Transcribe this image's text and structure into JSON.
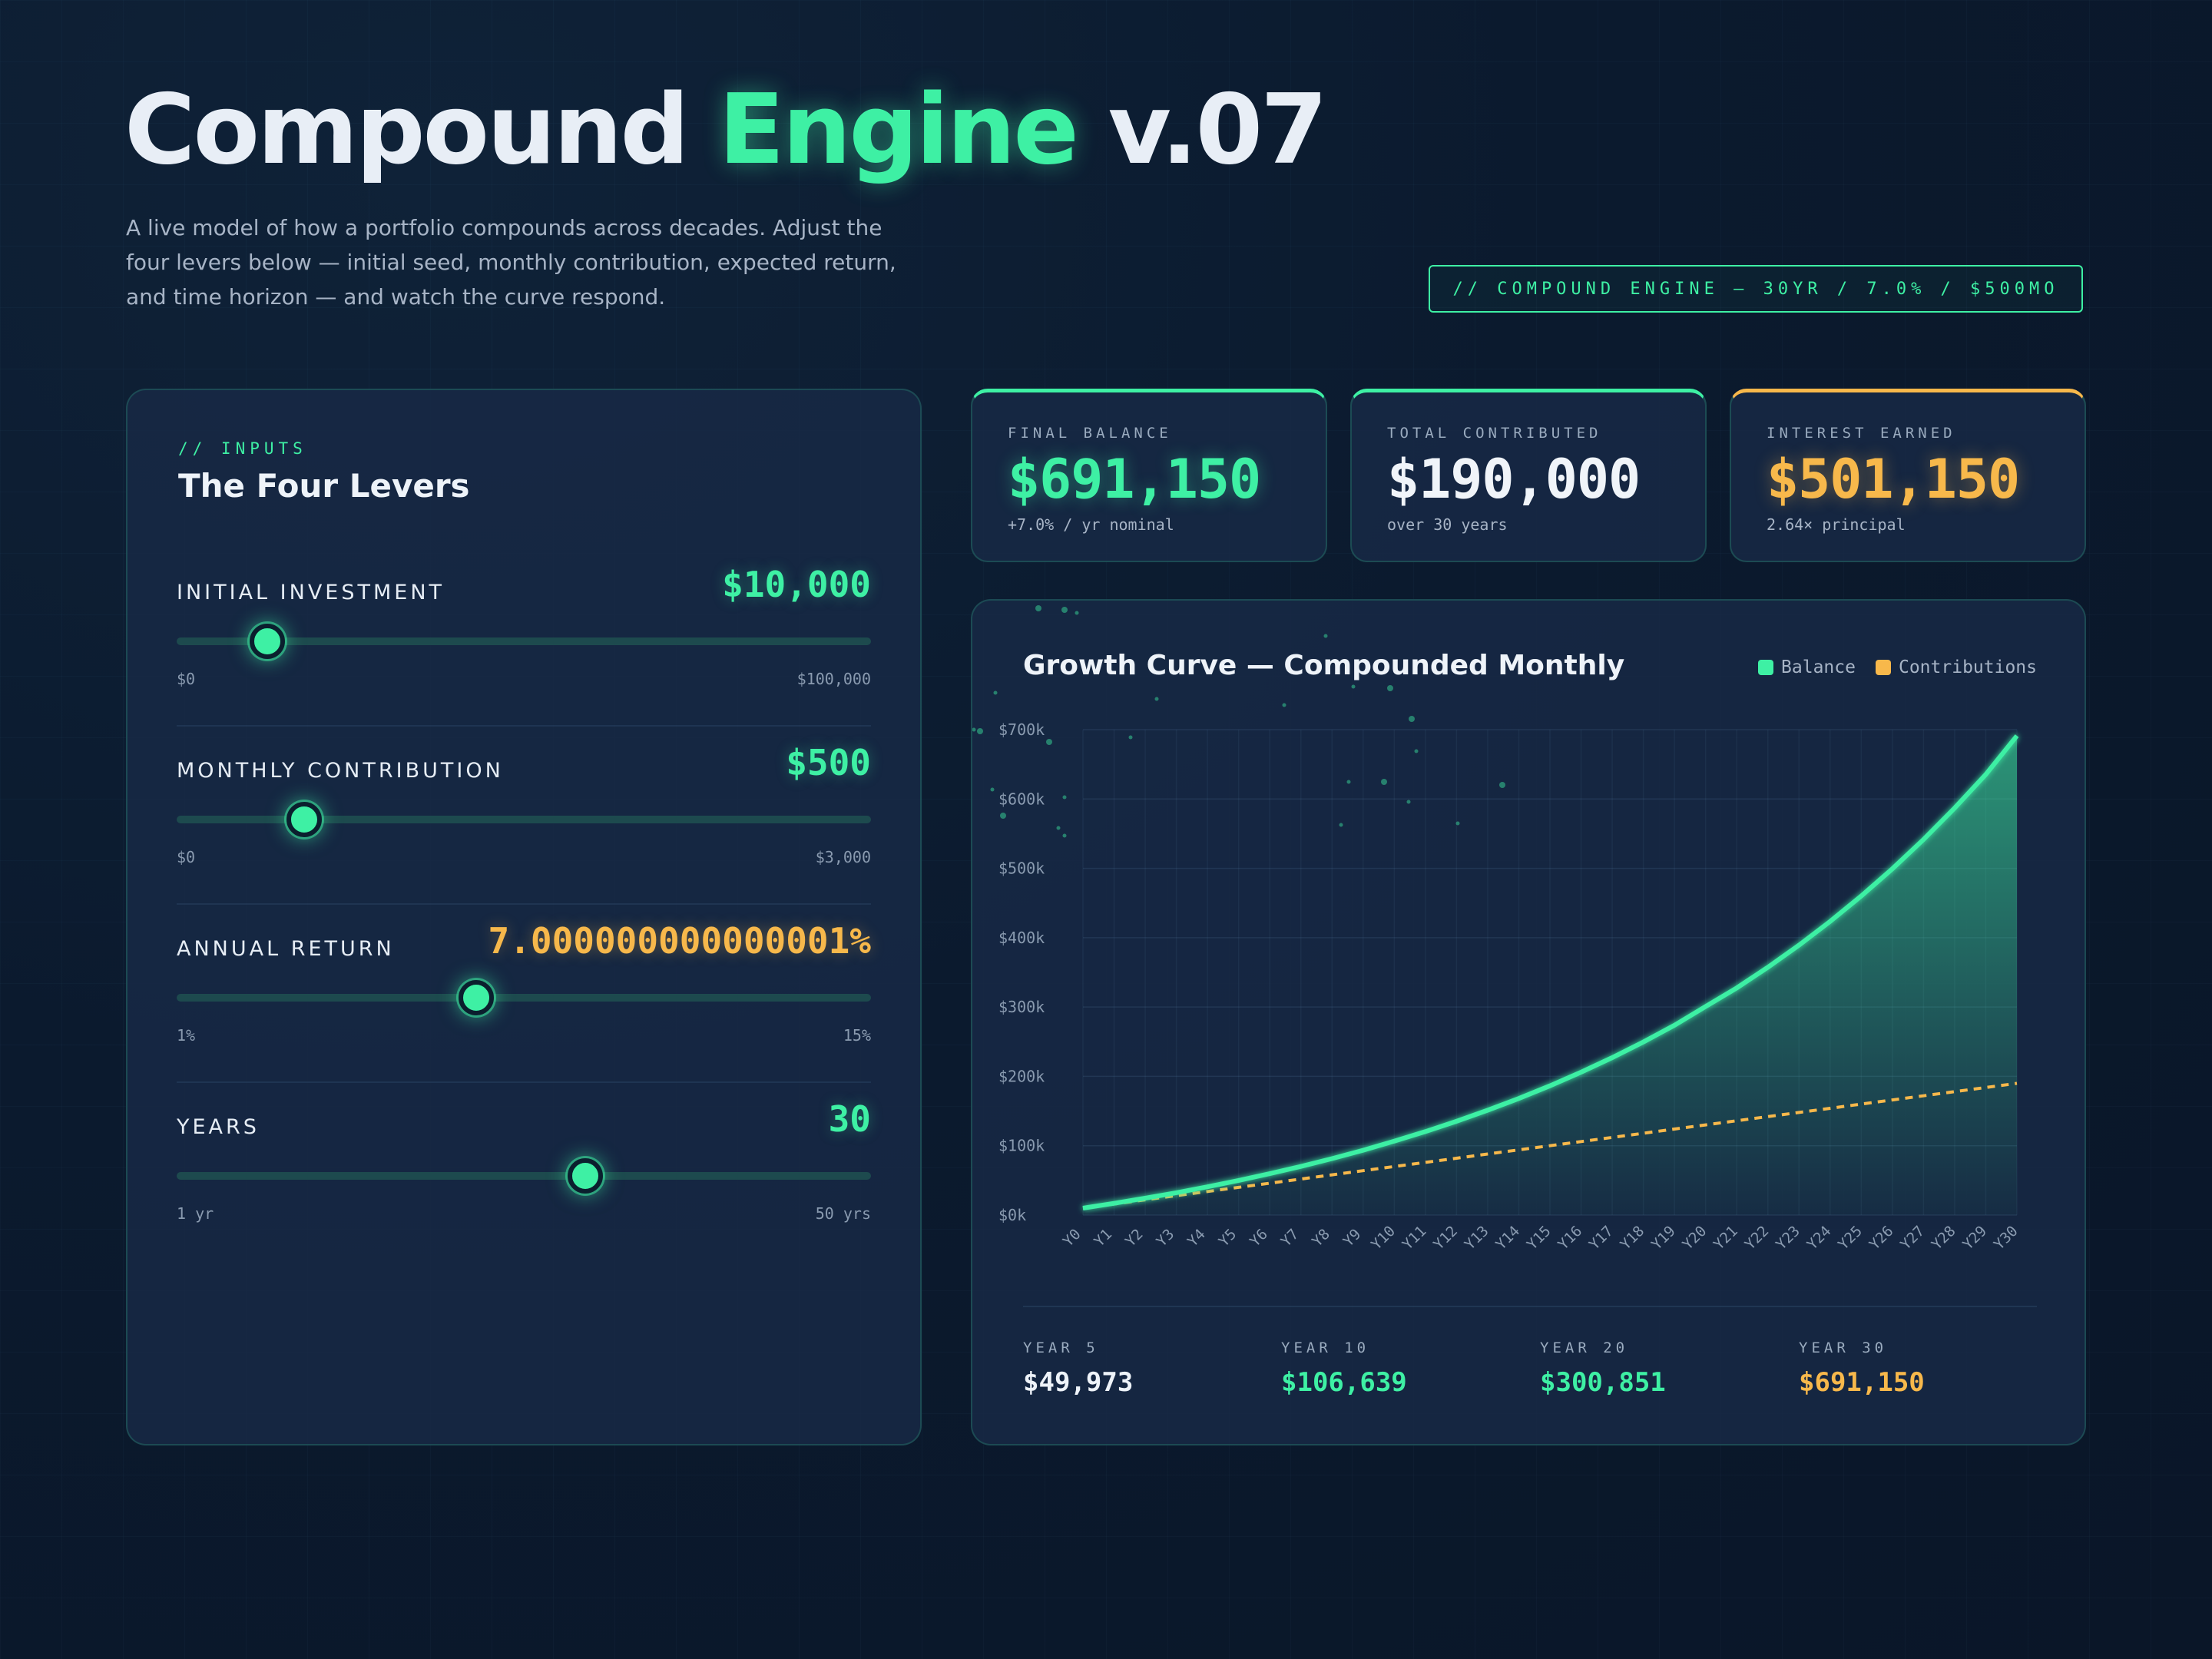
{
  "header": {
    "title_part1": "Compound ",
    "title_accent": "Engine",
    "title_part2": " v.07",
    "subtitle": "A live model of how a portfolio compounds across decades. Adjust the four levers below — initial seed, monthly contribution, expected return, and time horizon — and watch the curve respond.",
    "tagline": "// COMPOUND ENGINE — 30YR / 7.0% / $500MO"
  },
  "inputs": {
    "eyebrow": "// INPUTS",
    "title": "The Four Levers",
    "levers": [
      {
        "label": "INITIAL INVESTMENT",
        "value": "$10,000",
        "min": "$0",
        "max": "$100,000",
        "position": 0.1,
        "color": "#3ef0a4"
      },
      {
        "label": "MONTHLY CONTRIBUTION",
        "value": "$500",
        "min": "$0",
        "max": "$3,000",
        "position": 0.1667,
        "color": "#3ef0a4"
      },
      {
        "label": "ANNUAL RETURN",
        "value": "7.000000000000001%",
        "min": "1%",
        "max": "15%",
        "position": 0.4286,
        "color": "#f7b84b"
      },
      {
        "label": "YEARS",
        "value": "30",
        "min": "1 yr",
        "max": "50 yrs",
        "position": 0.5918,
        "color": "#3ef0a4"
      }
    ]
  },
  "stats": [
    {
      "label": "FINAL BALANCE",
      "value": "$691,150",
      "sub": "+7.0% / yr nominal",
      "accent": "#3ef0a4"
    },
    {
      "label": "TOTAL CONTRIBUTED",
      "value": "$190,000",
      "sub": "over 30 years",
      "accent": "#3ef0a4"
    },
    {
      "label": "INTEREST EARNED",
      "value": "$501,150",
      "sub": "2.64× principal",
      "accent": "#f7b84b"
    }
  ],
  "chart": {
    "title": "Growth Curve — Compounded Monthly",
    "legend": [
      {
        "name": "Balance",
        "color": "#3ef0a4"
      },
      {
        "name": "Contributions",
        "color": "#f7b84b"
      }
    ],
    "summary": [
      {
        "label": "YEAR 5",
        "value": "$49,973",
        "tone": "plain"
      },
      {
        "label": "YEAR 10",
        "value": "$106,639",
        "tone": "green"
      },
      {
        "label": "YEAR 20",
        "value": "$300,851",
        "tone": "green"
      },
      {
        "label": "YEAR 30",
        "value": "$691,150",
        "tone": "amber"
      }
    ]
  },
  "chart_data": {
    "type": "area",
    "title": "Growth Curve — Compounded Monthly",
    "categories": [
      "Y0",
      "Y1",
      "Y2",
      "Y3",
      "Y4",
      "Y5",
      "Y6",
      "Y7",
      "Y8",
      "Y9",
      "Y10",
      "Y11",
      "Y12",
      "Y13",
      "Y14",
      "Y15",
      "Y16",
      "Y17",
      "Y18",
      "Y19",
      "Y20",
      "Y21",
      "Y22",
      "Y23",
      "Y24",
      "Y25",
      "Y26",
      "Y27",
      "Y28",
      "Y29",
      "Y30"
    ],
    "series": [
      {
        "name": "Balance",
        "color": "#3ef0a4",
        "style": "solid-area",
        "values": [
          10000,
          16916,
          24331,
          32282,
          40808,
          49973,
          59681,
          70163,
          81402,
          93453,
          106639,
          120448,
          135265,
          151151,
          168188,
          186457,
          206047,
          227054,
          249580,
          273736,
          300851,
          327495,
          357263,
          389174,
          423398,
          460099,
          499448,
          541641,
          586889,
          635408,
          691150
        ]
      },
      {
        "name": "Contributions",
        "color": "#f7b84b",
        "style": "dashed",
        "values": [
          10000,
          16000,
          22000,
          28000,
          34000,
          40000,
          46000,
          52000,
          58000,
          64000,
          70000,
          76000,
          82000,
          88000,
          94000,
          100000,
          106000,
          112000,
          118000,
          124000,
          130000,
          136000,
          142000,
          148000,
          154000,
          160000,
          166000,
          172000,
          178000,
          184000,
          190000
        ]
      }
    ],
    "yticks": [
      "$0k",
      "$100k",
      "$200k",
      "$300k",
      "$400k",
      "$500k",
      "$600k",
      "$700k"
    ],
    "ylim": [
      0,
      700000
    ],
    "grid": true,
    "legend_position": "top-right"
  }
}
